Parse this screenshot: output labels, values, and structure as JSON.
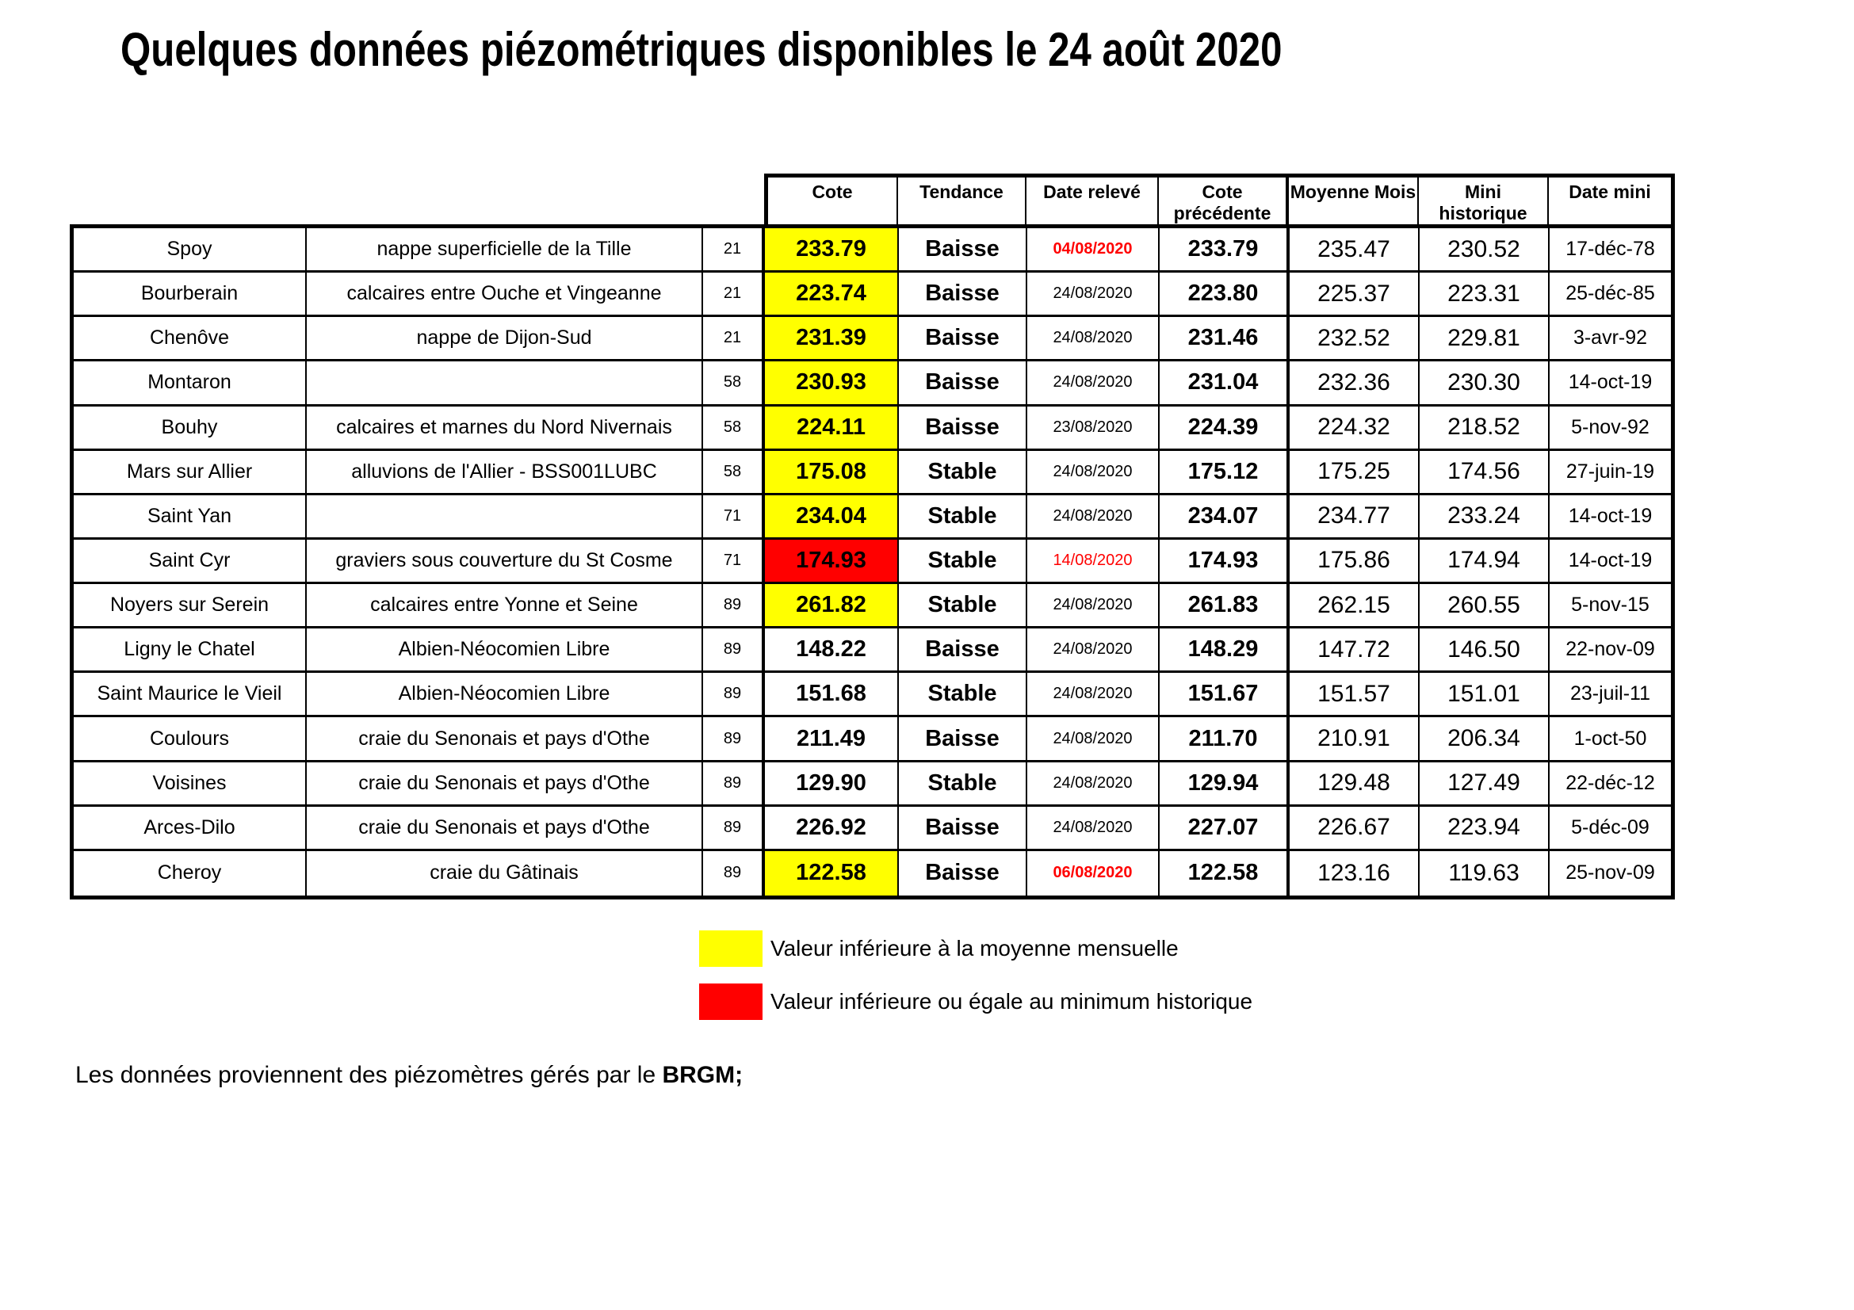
{
  "title": "Quelques données piézométriques disponibles le 24 août 2020",
  "colors": {
    "highlight_yellow": "#FFFF00",
    "highlight_red": "#FF0000",
    "date_alert_red": "#FF0000"
  },
  "table": {
    "headers": {
      "cote": "Cote",
      "tendance": "Tendance",
      "date_releve": "Date relevé",
      "cote_precedente_line1": "Cote",
      "cote_precedente_line2": "précédente",
      "moyenne_mois": "Moyenne Mois",
      "mini_historique": "Mini historique",
      "date_mini": "Date mini"
    },
    "rows": [
      {
        "station": "Spoy",
        "aquifer": "nappe superficielle de la Tille",
        "dept": "21",
        "cote": "233.79",
        "cote_highlight": "yellow",
        "tendance": "Baisse",
        "date_releve": "04/08/2020",
        "date_releve_style": "red-bold",
        "cote_precedente": "233.79",
        "moyenne_mois": "235.47",
        "mini_historique": "230.52",
        "date_mini": "17-déc-78"
      },
      {
        "station": "Bourberain",
        "aquifer": "calcaires entre Ouche et Vingeanne",
        "dept": "21",
        "cote": "223.74",
        "cote_highlight": "yellow",
        "tendance": "Baisse",
        "date_releve": "24/08/2020",
        "date_releve_style": "normal",
        "cote_precedente": "223.80",
        "moyenne_mois": "225.37",
        "mini_historique": "223.31",
        "date_mini": "25-déc-85"
      },
      {
        "station": "Chenôve",
        "aquifer": "nappe de Dijon-Sud",
        "dept": "21",
        "cote": "231.39",
        "cote_highlight": "yellow",
        "tendance": "Baisse",
        "date_releve": "24/08/2020",
        "date_releve_style": "normal",
        "cote_precedente": "231.46",
        "moyenne_mois": "232.52",
        "mini_historique": "229.81",
        "date_mini": "3-avr-92"
      },
      {
        "station": "Montaron",
        "aquifer": "",
        "dept": "58",
        "cote": "230.93",
        "cote_highlight": "yellow",
        "tendance": "Baisse",
        "date_releve": "24/08/2020",
        "date_releve_style": "normal",
        "cote_precedente": "231.04",
        "moyenne_mois": "232.36",
        "mini_historique": "230.30",
        "date_mini": "14-oct-19"
      },
      {
        "station": "Bouhy",
        "aquifer": "calcaires et marnes du Nord Nivernais",
        "dept": "58",
        "cote": "224.11",
        "cote_highlight": "yellow",
        "tendance": "Baisse",
        "date_releve": "23/08/2020",
        "date_releve_style": "normal",
        "cote_precedente": "224.39",
        "moyenne_mois": "224.32",
        "mini_historique": "218.52",
        "date_mini": "5-nov-92"
      },
      {
        "station": "Mars sur Allier",
        "aquifer": "alluvions de l'Allier - BSS001LUBC",
        "dept": "58",
        "cote": "175.08",
        "cote_highlight": "yellow",
        "tendance": "Stable",
        "date_releve": "24/08/2020",
        "date_releve_style": "normal",
        "cote_precedente": "175.12",
        "moyenne_mois": "175.25",
        "mini_historique": "174.56",
        "date_mini": "27-juin-19"
      },
      {
        "station": "Saint Yan",
        "aquifer": "",
        "dept": "71",
        "cote": "234.04",
        "cote_highlight": "yellow",
        "tendance": "Stable",
        "date_releve": "24/08/2020",
        "date_releve_style": "normal",
        "cote_precedente": "234.07",
        "moyenne_mois": "234.77",
        "mini_historique": "233.24",
        "date_mini": "14-oct-19"
      },
      {
        "station": "Saint Cyr",
        "aquifer": "graviers sous couverture du St Cosme",
        "dept": "71",
        "cote": "174.93",
        "cote_highlight": "red",
        "tendance": "Stable",
        "date_releve": "14/08/2020",
        "date_releve_style": "red",
        "cote_precedente": "174.93",
        "moyenne_mois": "175.86",
        "mini_historique": "174.94",
        "date_mini": "14-oct-19"
      },
      {
        "station": "Noyers sur Serein",
        "aquifer": "calcaires entre Yonne et Seine",
        "dept": "89",
        "cote": "261.82",
        "cote_highlight": "yellow",
        "tendance": "Stable",
        "date_releve": "24/08/2020",
        "date_releve_style": "normal",
        "cote_precedente": "261.83",
        "moyenne_mois": "262.15",
        "mini_historique": "260.55",
        "date_mini": "5-nov-15"
      },
      {
        "station": "Ligny le Chatel",
        "aquifer": "Albien-Néocomien Libre",
        "dept": "89",
        "cote": "148.22",
        "cote_highlight": "none",
        "tendance": "Baisse",
        "date_releve": "24/08/2020",
        "date_releve_style": "normal",
        "cote_precedente": "148.29",
        "moyenne_mois": "147.72",
        "mini_historique": "146.50",
        "date_mini": "22-nov-09"
      },
      {
        "station": "Saint Maurice le Vieil",
        "aquifer": "Albien-Néocomien Libre",
        "dept": "89",
        "cote": "151.68",
        "cote_highlight": "none",
        "tendance": "Stable",
        "date_releve": "24/08/2020",
        "date_releve_style": "normal",
        "cote_precedente": "151.67",
        "moyenne_mois": "151.57",
        "mini_historique": "151.01",
        "date_mini": "23-juil-11"
      },
      {
        "station": "Coulours",
        "aquifer": "craie du Senonais et pays d'Othe",
        "dept": "89",
        "cote": "211.49",
        "cote_highlight": "none",
        "tendance": "Baisse",
        "date_releve": "24/08/2020",
        "date_releve_style": "normal",
        "cote_precedente": "211.70",
        "moyenne_mois": "210.91",
        "mini_historique": "206.34",
        "date_mini": "1-oct-50"
      },
      {
        "station": "Voisines",
        "aquifer": "craie du Senonais et pays d'Othe",
        "dept": "89",
        "cote": "129.90",
        "cote_highlight": "none",
        "tendance": "Stable",
        "date_releve": "24/08/2020",
        "date_releve_style": "normal",
        "cote_precedente": "129.94",
        "moyenne_mois": "129.48",
        "mini_historique": "127.49",
        "date_mini": "22-déc-12"
      },
      {
        "station": "Arces-Dilo",
        "aquifer": "craie du Senonais et pays d'Othe",
        "dept": "89",
        "cote": "226.92",
        "cote_highlight": "none",
        "tendance": "Baisse",
        "date_releve": "24/08/2020",
        "date_releve_style": "normal",
        "cote_precedente": "227.07",
        "moyenne_mois": "226.67",
        "mini_historique": "223.94",
        "date_mini": "5-déc-09"
      },
      {
        "station": "Cheroy",
        "aquifer": "craie du Gâtinais",
        "dept": "89",
        "cote": "122.58",
        "cote_highlight": "yellow",
        "tendance": "Baisse",
        "date_releve": "06/08/2020",
        "date_releve_style": "red-bold",
        "cote_precedente": "122.58",
        "moyenne_mois": "123.16",
        "mini_historique": "119.63",
        "date_mini": "25-nov-09"
      }
    ]
  },
  "legend": [
    {
      "color": "#FFFF00",
      "label": "Valeur inférieure à la moyenne mensuelle"
    },
    {
      "color": "#FF0000",
      "label": "Valeur inférieure ou égale au minimum historique"
    }
  ],
  "footer": {
    "text": "Les données proviennent des piézomètres gérés par le ",
    "bold": "BRGM;"
  }
}
